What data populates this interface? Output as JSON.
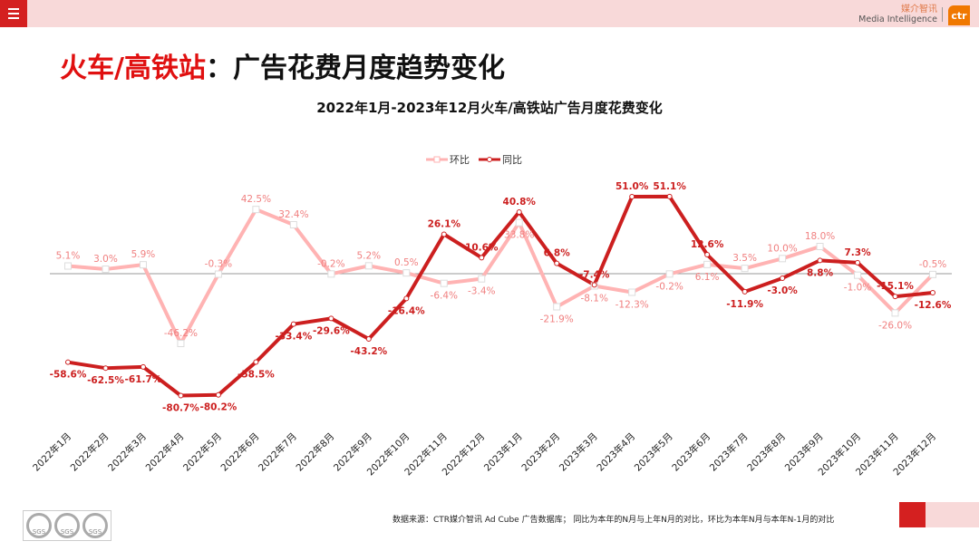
{
  "header": {
    "brand_cn": "媒介智讯",
    "brand_en": "Media Intelligence",
    "logo": "ctr"
  },
  "title": {
    "highlight": "火车/高铁站",
    "rest": "：广告花费月度趋势变化"
  },
  "footer": {
    "source": "数据来源：CTR媒介智讯 Ad Cube 广告数据库； 同比为本年的N月与上年N月的对比，环比为本年N月与本年N-1月的对比",
    "certification": "SGS"
  },
  "colors": {
    "accent": "#d42020",
    "mom": "#ffb3b3",
    "yoy": "#cc1f1f",
    "topbar": "#f8d9d9"
  },
  "chart_data": {
    "type": "line",
    "title": "2022年1月-2023年12月火车/高铁站广告月度花费变化",
    "legend_position": "top",
    "grid": false,
    "ylim": [
      -90,
      60
    ],
    "categories": [
      "2022年1月",
      "2022年2月",
      "2022年3月",
      "2022年4月",
      "2022年5月",
      "2022年6月",
      "2022年7月",
      "2022年8月",
      "2022年9月",
      "2022年10月",
      "2022年11月",
      "2022年12月",
      "2023年1月",
      "2023年2月",
      "2023年3月",
      "2023年4月",
      "2023年5月",
      "2023年6月",
      "2023年7月",
      "2023年8月",
      "2023年9月",
      "2023年10月",
      "2023年11月",
      "2023年12月"
    ],
    "series": [
      {
        "name": "环比",
        "unit": "%",
        "values": [
          5.1,
          3.0,
          5.9,
          -46.2,
          -0.3,
          42.5,
          32.4,
          -0.2,
          5.2,
          0.5,
          -6.4,
          -3.4,
          33.8,
          -21.9,
          -8.1,
          -12.3,
          -0.2,
          6.1,
          3.5,
          10.0,
          18.0,
          -1.0,
          -26.0,
          -0.5
        ]
      },
      {
        "name": "同比",
        "unit": "%",
        "values": [
          -58.6,
          -62.5,
          -61.7,
          -80.7,
          -80.2,
          -58.5,
          -33.4,
          -29.6,
          -43.2,
          -16.4,
          26.1,
          10.6,
          40.8,
          6.8,
          -7.4,
          51.0,
          51.1,
          12.6,
          -11.9,
          -3.0,
          8.8,
          7.3,
          -15.1,
          -12.6
        ]
      }
    ]
  }
}
